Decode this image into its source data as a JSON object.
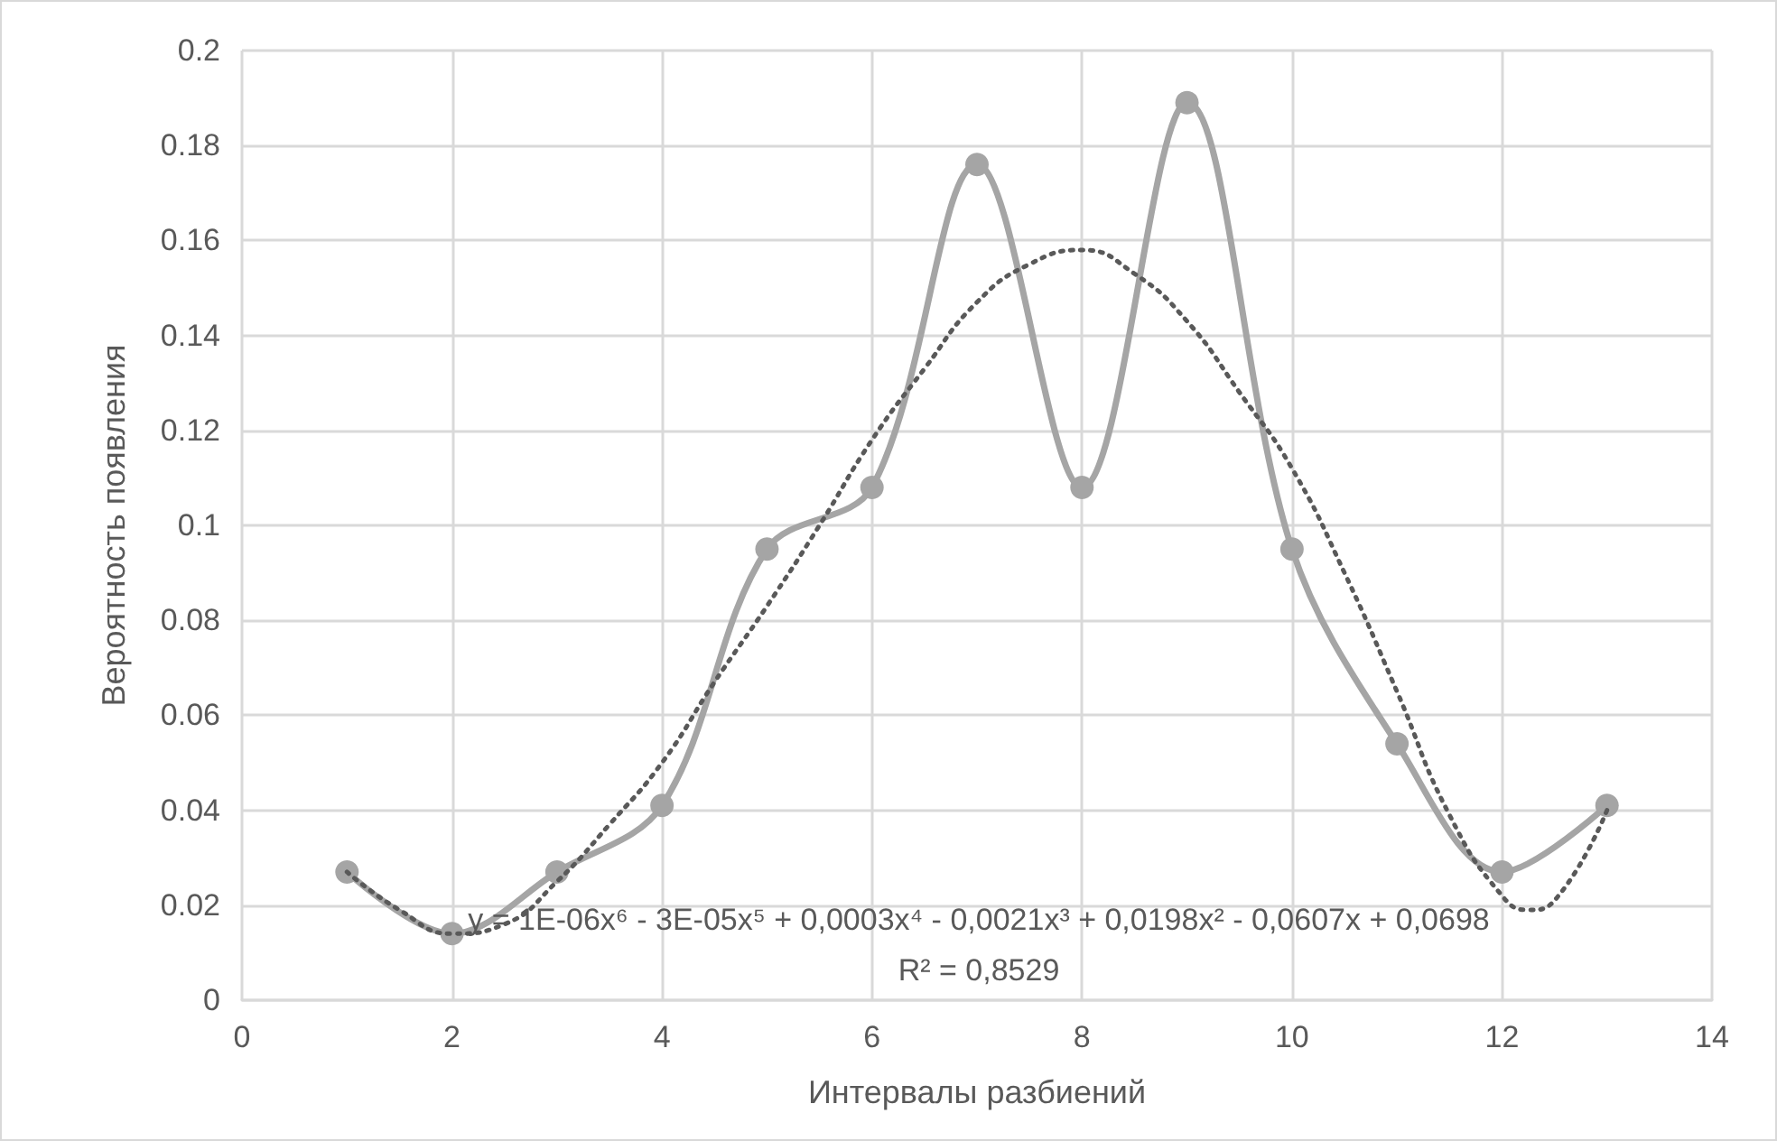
{
  "chart_data": {
    "type": "line",
    "xlabel": "Интервалы разбиений",
    "ylabel": "Вероятность появления",
    "xlim": [
      0,
      14
    ],
    "xticks": [
      0,
      2,
      4,
      6,
      8,
      10,
      12,
      14
    ],
    "ylim": [
      0,
      0.2
    ],
    "yticks": [
      0,
      0.02,
      0.04,
      0.06,
      0.08,
      0.1,
      0.12,
      0.14,
      0.16,
      0.18,
      0.2
    ],
    "grid": true,
    "series": [
      {
        "color": "#a5a5a5",
        "marker": "circle",
        "line_style": "solid",
        "x": [
          1,
          2,
          3,
          4,
          5,
          6,
          7,
          8,
          9,
          10,
          11,
          12,
          13
        ],
        "values": [
          0.027,
          0.014,
          0.027,
          0.041,
          0.095,
          0.108,
          0.176,
          0.108,
          0.189,
          0.095,
          0.054,
          0.027,
          0.041
        ]
      },
      {
        "color": "#595959",
        "marker": "none",
        "line_style": "dotted",
        "x": [
          1,
          1.5,
          2,
          2.5,
          3,
          3.5,
          4,
          4.5,
          5,
          5.5,
          6,
          6.5,
          7,
          7.5,
          8,
          8.5,
          9,
          9.5,
          10,
          10.5,
          11,
          11.5,
          12,
          12.25,
          12.5,
          13
        ],
        "values": [
          0.027,
          0.019,
          0.014,
          0.016,
          0.025,
          0.037,
          0.05,
          0.067,
          0.083,
          0.1,
          0.118,
          0.133,
          0.147,
          0.155,
          0.158,
          0.153,
          0.143,
          0.128,
          0.112,
          0.09,
          0.065,
          0.039,
          0.022,
          0.019,
          0.021,
          0.04
        ]
      }
    ],
    "annotations": [
      "y = 1E-06x⁶ - 3E-05x⁵ + 0,0003x⁴ - 0,0021x³ + 0,0198x² - 0,0607x + 0,0698",
      "R² = 0,8529"
    ]
  }
}
